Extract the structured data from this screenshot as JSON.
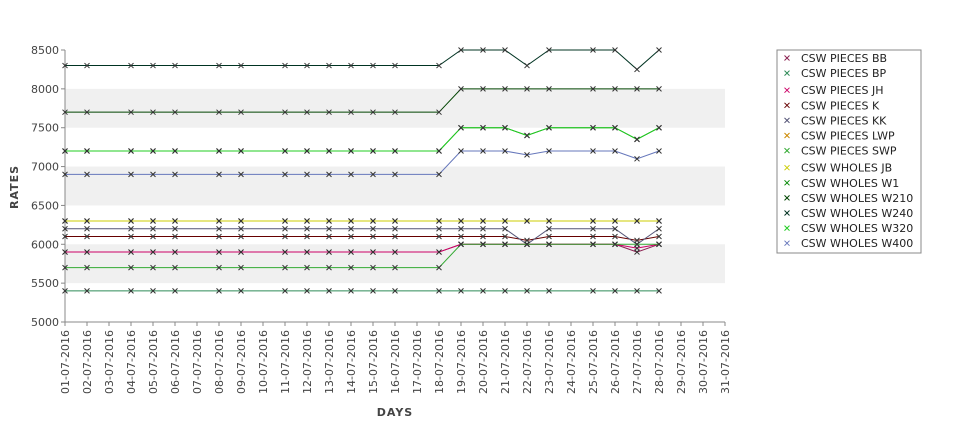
{
  "chart_data": {
    "type": "line",
    "xlabel": "DAYS",
    "ylabel": "RATES",
    "ylim": [
      5000,
      8500
    ],
    "yticks": [
      5000,
      5500,
      6000,
      6500,
      7000,
      7500,
      8000,
      8500
    ],
    "grid": "alternating horizontal bands",
    "legend_position": "right",
    "categories": [
      "01-07-2016",
      "02-07-2016",
      "03-07-2016",
      "04-07-2016",
      "05-07-2016",
      "06-07-2016",
      "07-07-2016",
      "08-07-2016",
      "09-07-2016",
      "10-07-2016",
      "11-07-2016",
      "12-07-2016",
      "13-07-2016",
      "14-07-2016",
      "15-07-2016",
      "16-07-2016",
      "17-07-2016",
      "18-07-2016",
      "19-07-2016",
      "20-07-2016",
      "21-07-2016",
      "22-07-2016",
      "23-07-2016",
      "24-07-2016",
      "25-07-2016",
      "26-07-2016",
      "27-07-2016",
      "28-07-2016",
      "29-07-2016",
      "30-07-2016",
      "31-07-2016"
    ],
    "series": [
      {
        "name": "CSW PIECES BB",
        "color": "#8b2252",
        "values": [
          5900,
          5900,
          null,
          5900,
          5900,
          5900,
          null,
          5900,
          5900,
          null,
          5900,
          5900,
          5900,
          5900,
          5900,
          5900,
          null,
          5900,
          6000,
          6000,
          6000,
          6000,
          6000,
          null,
          6000,
          6000,
          5900,
          6000,
          null,
          null,
          null
        ]
      },
      {
        "name": "CSW PIECES BP",
        "color": "#2e8b57",
        "values": [
          5400,
          5400,
          null,
          5400,
          5400,
          5400,
          null,
          5400,
          5400,
          null,
          5400,
          5400,
          5400,
          5400,
          5400,
          5400,
          null,
          5400,
          5400,
          5400,
          5400,
          5400,
          5400,
          null,
          5400,
          5400,
          5400,
          5400,
          null,
          null,
          null
        ]
      },
      {
        "name": "CSW PIECES JH",
        "color": "#cc0066",
        "values": [
          5900,
          5900,
          null,
          5900,
          5900,
          5900,
          null,
          5900,
          5900,
          null,
          5900,
          5900,
          5900,
          5900,
          5900,
          5900,
          null,
          5900,
          6000,
          6000,
          6000,
          6000,
          6000,
          null,
          6000,
          6000,
          5950,
          6000,
          null,
          null,
          null
        ]
      },
      {
        "name": "CSW PIECES K",
        "color": "#660000",
        "values": [
          6100,
          6100,
          null,
          6100,
          6100,
          6100,
          null,
          6100,
          6100,
          null,
          6100,
          6100,
          6100,
          6100,
          6100,
          6100,
          null,
          6100,
          6100,
          6100,
          6100,
          6050,
          6100,
          null,
          6100,
          6100,
          6050,
          6100,
          null,
          null,
          null
        ]
      },
      {
        "name": "CSW PIECES KK",
        "color": "#555577",
        "values": [
          6200,
          6200,
          null,
          6200,
          6200,
          6200,
          null,
          6200,
          6200,
          null,
          6200,
          6200,
          6200,
          6200,
          6200,
          6200,
          null,
          6200,
          6200,
          6200,
          6200,
          6000,
          6200,
          null,
          6200,
          6200,
          6000,
          6200,
          null,
          null,
          null
        ]
      },
      {
        "name": "CSW PIECES LWP",
        "color": "#cc8800",
        "values": [
          6300,
          6300,
          null,
          6300,
          6300,
          6300,
          null,
          6300,
          6300,
          null,
          6300,
          6300,
          6300,
          6300,
          6300,
          6300,
          null,
          6300,
          6300,
          6300,
          6300,
          6300,
          6300,
          null,
          6300,
          6300,
          6300,
          6300,
          null,
          null,
          null
        ]
      },
      {
        "name": "CSW PIECES SWP",
        "color": "#33aa33",
        "values": [
          5700,
          5700,
          null,
          5700,
          5700,
          5700,
          null,
          5700,
          5700,
          null,
          5700,
          5700,
          5700,
          5700,
          5700,
          5700,
          null,
          5700,
          6000,
          6000,
          6000,
          6000,
          6000,
          null,
          6000,
          6000,
          6000,
          6000,
          null,
          null,
          null
        ]
      },
      {
        "name": "CSW WHOLES JB",
        "color": "#cccc00",
        "values": [
          6300,
          6300,
          null,
          6300,
          6300,
          6300,
          null,
          6300,
          6300,
          null,
          6300,
          6300,
          6300,
          6300,
          6300,
          6300,
          null,
          6300,
          6300,
          6300,
          6300,
          6300,
          6300,
          null,
          6300,
          6300,
          6300,
          6300,
          null,
          null,
          null
        ]
      },
      {
        "name": "CSW WHOLES W1",
        "color": "#008800",
        "values": [
          7200,
          7200,
          null,
          7200,
          7200,
          7200,
          null,
          7200,
          7200,
          null,
          7200,
          7200,
          7200,
          7200,
          7200,
          7200,
          null,
          7200,
          7500,
          7500,
          7500,
          7400,
          7500,
          null,
          7500,
          7500,
          7350,
          7500,
          null,
          null,
          null
        ]
      },
      {
        "name": "CSW WHOLES W210",
        "color": "#004400",
        "values": [
          7700,
          7700,
          null,
          7700,
          7700,
          7700,
          null,
          7700,
          7700,
          null,
          7700,
          7700,
          7700,
          7700,
          7700,
          7700,
          null,
          7700,
          8000,
          8000,
          8000,
          8000,
          8000,
          null,
          8000,
          8000,
          8000,
          8000,
          null,
          null,
          null
        ]
      },
      {
        "name": "CSW WHOLES W240",
        "color": "#003322",
        "values": [
          8300,
          8300,
          null,
          8300,
          8300,
          8300,
          null,
          8300,
          8300,
          null,
          8300,
          8300,
          8300,
          8300,
          8300,
          8300,
          null,
          8300,
          8500,
          8500,
          8500,
          8300,
          8500,
          null,
          8500,
          8500,
          8250,
          8500,
          null,
          null,
          null
        ]
      },
      {
        "name": "CSW WHOLES W320",
        "color": "#22cc22",
        "values": [
          7200,
          7200,
          null,
          7200,
          7200,
          7200,
          null,
          7200,
          7200,
          null,
          7200,
          7200,
          7200,
          7200,
          7200,
          7200,
          null,
          7200,
          7500,
          7500,
          7500,
          7400,
          7500,
          null,
          7500,
          7500,
          7350,
          7500,
          null,
          null,
          null
        ]
      },
      {
        "name": "CSW WHOLES W400",
        "color": "#6677bb",
        "values": [
          6900,
          6900,
          null,
          6900,
          6900,
          6900,
          null,
          6900,
          6900,
          null,
          6900,
          6900,
          6900,
          6900,
          6900,
          6900,
          null,
          6900,
          7200,
          7200,
          7200,
          7150,
          7200,
          null,
          7200,
          7200,
          7100,
          7200,
          null,
          null,
          null
        ]
      }
    ]
  }
}
